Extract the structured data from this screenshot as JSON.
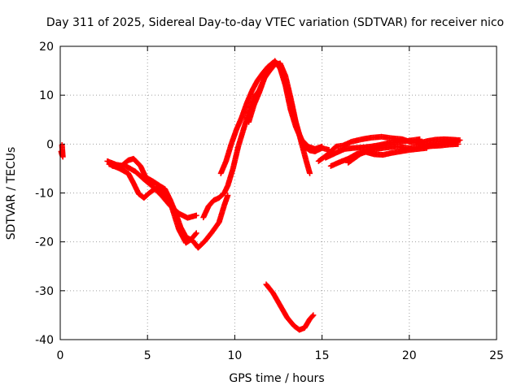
{
  "chart_data": {
    "type": "scatter",
    "title": "Day 311 of 2025, Sidereal Day-to-day VTEC variation (SDTVAR) for receiver nico",
    "xlabel": "GPS time / hours",
    "ylabel": "SDTVAR / TECUs",
    "xlim": [
      0,
      25
    ],
    "ylim": [
      -40,
      20
    ],
    "xticks": [
      0,
      5,
      10,
      15,
      20,
      25
    ],
    "yticks": [
      -40,
      -30,
      -20,
      -10,
      0,
      10,
      20
    ],
    "grid": true,
    "marker": "+",
    "color": "#ff0000",
    "series": [
      {
        "name": "pass-0",
        "points": [
          [
            0.05,
            -1.5
          ],
          [
            0.1,
            -2.2
          ],
          [
            0.15,
            -2.6
          ],
          [
            0.1,
            -0.2
          ]
        ]
      },
      {
        "name": "pass-1",
        "points": [
          [
            2.7,
            -3.5
          ],
          [
            3.2,
            -4.2
          ],
          [
            3.8,
            -4.6
          ],
          [
            4.3,
            -5.6
          ],
          [
            4.8,
            -7.2
          ],
          [
            5.3,
            -8.7
          ],
          [
            5.8,
            -10.5
          ],
          [
            6.3,
            -12.6
          ],
          [
            6.8,
            -14.2
          ],
          [
            7.3,
            -15.1
          ],
          [
            7.8,
            -14.6
          ]
        ]
      },
      {
        "name": "pass-2",
        "points": [
          [
            2.8,
            -4.1
          ],
          [
            3.4,
            -5.0
          ],
          [
            3.9,
            -6.0
          ],
          [
            4.2,
            -8.0
          ],
          [
            4.5,
            -10.2
          ],
          [
            4.8,
            -11.0
          ],
          [
            5.1,
            -10.0
          ],
          [
            5.5,
            -9.0
          ],
          [
            6.0,
            -10.2
          ],
          [
            6.4,
            -13.0
          ],
          [
            6.8,
            -17.5
          ],
          [
            7.2,
            -20.2
          ],
          [
            7.5,
            -19.5
          ],
          [
            7.8,
            -18.2
          ]
        ]
      },
      {
        "name": "pass-3",
        "points": [
          [
            3.0,
            -4.5
          ],
          [
            3.5,
            -4.5
          ],
          [
            3.9,
            -3.3
          ],
          [
            4.2,
            -3.0
          ],
          [
            4.6,
            -4.5
          ],
          [
            4.9,
            -6.8
          ],
          [
            5.3,
            -7.6
          ],
          [
            5.6,
            -8.3
          ],
          [
            6.0,
            -9.2
          ],
          [
            6.3,
            -11.4
          ],
          [
            6.6,
            -14.0
          ],
          [
            6.9,
            -17.0
          ],
          [
            7.2,
            -19.0
          ],
          [
            7.6,
            -19.8
          ],
          [
            7.9,
            -21.2
          ],
          [
            8.3,
            -19.8
          ],
          [
            8.7,
            -18.0
          ],
          [
            9.1,
            -16.0
          ],
          [
            9.4,
            -12.5
          ],
          [
            9.6,
            -10.5
          ]
        ]
      },
      {
        "name": "pass-4",
        "points": [
          [
            8.2,
            -15.0
          ],
          [
            8.5,
            -12.7
          ],
          [
            8.8,
            -11.5
          ],
          [
            9.1,
            -11.0
          ],
          [
            9.4,
            -10.0
          ],
          [
            9.6,
            -8.5
          ],
          [
            9.9,
            -5.0
          ],
          [
            10.2,
            -0.5
          ],
          [
            10.5,
            3.0
          ],
          [
            10.8,
            6.5
          ],
          [
            11.1,
            9.5
          ],
          [
            11.4,
            11.0
          ],
          [
            11.7,
            13.5
          ],
          [
            12.0,
            15.0
          ],
          [
            12.3,
            16.3
          ],
          [
            12.6,
            16.5
          ],
          [
            12.9,
            14.0
          ],
          [
            13.2,
            9.5
          ],
          [
            13.5,
            4.5
          ],
          [
            13.8,
            0.5
          ],
          [
            14.1,
            -3.5
          ],
          [
            14.3,
            -6.0
          ]
        ]
      },
      {
        "name": "pass-5",
        "points": [
          [
            9.2,
            -6.0
          ],
          [
            9.5,
            -3.5
          ],
          [
            9.8,
            0.0
          ],
          [
            10.1,
            3.0
          ],
          [
            10.4,
            5.5
          ],
          [
            10.7,
            8.5
          ],
          [
            11.0,
            11.0
          ],
          [
            11.3,
            13.0
          ],
          [
            11.6,
            14.5
          ],
          [
            11.9,
            15.8
          ],
          [
            12.2,
            16.7
          ],
          [
            12.5,
            16.2
          ],
          [
            12.8,
            14.0
          ],
          [
            13.1,
            10.0
          ],
          [
            13.4,
            5.5
          ],
          [
            13.7,
            2.0
          ],
          [
            14.0,
            -0.5
          ],
          [
            14.3,
            -1.3
          ],
          [
            14.6,
            -1.5
          ],
          [
            15.0,
            -0.8
          ],
          [
            15.4,
            -1.2
          ]
        ]
      },
      {
        "name": "pass-6",
        "points": [
          [
            10.8,
            4.5
          ],
          [
            11.1,
            8.0
          ],
          [
            11.4,
            10.5
          ],
          [
            11.7,
            13.5
          ],
          [
            12.0,
            15.5
          ],
          [
            12.3,
            17.0
          ],
          [
            12.6,
            15.5
          ],
          [
            12.9,
            12.0
          ],
          [
            13.2,
            7.0
          ],
          [
            13.5,
            3.5
          ],
          [
            13.8,
            1.0
          ],
          [
            14.2,
            -0.5
          ],
          [
            14.6,
            -1.0
          ],
          [
            15.0,
            -0.5
          ]
        ]
      },
      {
        "name": "pass-7",
        "points": [
          [
            11.8,
            -28.7
          ],
          [
            12.2,
            -30.5
          ],
          [
            12.6,
            -33.0
          ],
          [
            13.0,
            -35.5
          ],
          [
            13.4,
            -37.2
          ],
          [
            13.7,
            -38.0
          ],
          [
            14.0,
            -37.6
          ],
          [
            14.3,
            -35.8
          ],
          [
            14.5,
            -35.0
          ]
        ]
      },
      {
        "name": "pass-8",
        "points": [
          [
            14.8,
            -3.5
          ],
          [
            15.3,
            -2.2
          ],
          [
            15.8,
            -0.5
          ],
          [
            16.2,
            -0.3
          ],
          [
            16.7,
            0.5
          ],
          [
            17.3,
            1.0
          ],
          [
            17.8,
            1.3
          ],
          [
            18.4,
            1.5
          ],
          [
            19.0,
            1.2
          ],
          [
            19.6,
            1.0
          ],
          [
            20.0,
            0.5
          ],
          [
            20.4,
            0.3
          ],
          [
            20.8,
            0.4
          ]
        ]
      },
      {
        "name": "pass-9",
        "points": [
          [
            15.2,
            -2.8
          ],
          [
            15.8,
            -1.8
          ],
          [
            16.3,
            -1.0
          ],
          [
            16.8,
            -0.8
          ],
          [
            17.3,
            -0.7
          ],
          [
            17.8,
            -0.5
          ],
          [
            18.3,
            -0.2
          ],
          [
            18.8,
            0.2
          ],
          [
            19.3,
            0.4
          ],
          [
            19.8,
            0.6
          ],
          [
            20.2,
            0.8
          ],
          [
            20.6,
            1.0
          ]
        ]
      },
      {
        "name": "pass-10",
        "points": [
          [
            15.5,
            -4.5
          ],
          [
            16.0,
            -3.7
          ],
          [
            16.5,
            -3.0
          ],
          [
            17.0,
            -2.0
          ],
          [
            17.5,
            -1.6
          ],
          [
            18.0,
            -2.1
          ],
          [
            18.5,
            -2.2
          ],
          [
            19.0,
            -1.8
          ],
          [
            19.5,
            -1.5
          ],
          [
            20.0,
            -1.2
          ],
          [
            20.5,
            -1.0
          ],
          [
            21.0,
            -0.8
          ]
        ]
      },
      {
        "name": "pass-11",
        "points": [
          [
            16.5,
            -3.8
          ],
          [
            17.2,
            -2.0
          ],
          [
            17.8,
            -1.2
          ],
          [
            18.5,
            -0.8
          ],
          [
            19.2,
            -0.5
          ],
          [
            20.0,
            -0.8
          ],
          [
            20.6,
            -0.6
          ],
          [
            21.1,
            -0.3
          ],
          [
            21.6,
            0.0
          ],
          [
            22.0,
            0.3
          ],
          [
            22.4,
            0.5
          ],
          [
            22.8,
            0.6
          ]
        ]
      },
      {
        "name": "pass-12",
        "points": [
          [
            20.5,
            0.1
          ],
          [
            21.0,
            0.6
          ],
          [
            21.5,
            0.9
          ],
          [
            22.0,
            1.0
          ],
          [
            22.5,
            0.9
          ],
          [
            22.9,
            0.8
          ]
        ]
      },
      {
        "name": "pass-13",
        "points": [
          [
            20.8,
            -0.6
          ],
          [
            21.3,
            -0.4
          ],
          [
            21.8,
            -0.3
          ],
          [
            22.3,
            -0.1
          ],
          [
            22.8,
            0.0
          ]
        ]
      }
    ]
  }
}
